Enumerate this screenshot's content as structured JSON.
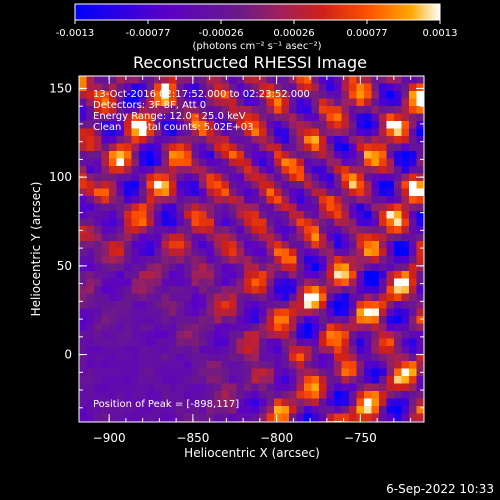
{
  "colorbar": {
    "ticks": [
      "-0.0013",
      "-0.00077",
      "-0.00026",
      "0.00026",
      "0.00077",
      "0.0013"
    ],
    "units": "(photons cm⁻² s⁻¹ asec⁻²)",
    "colors": [
      "#0000ff",
      "#5a00c8",
      "#6a1a88",
      "#9a2060",
      "#d02018",
      "#ff5000",
      "#ffa800",
      "#ffffff"
    ]
  },
  "chart_data": {
    "type": "heatmap",
    "title": "Reconstructed RHESSI Image",
    "xlabel": "Heliocentric X (arcsec)",
    "ylabel": "Heliocentric Y (arcsec)",
    "x_ticks": [
      "−900",
      "−850",
      "−800",
      "−750"
    ],
    "y_ticks": [
      "0",
      "50",
      "100",
      "150"
    ],
    "xlim": [
      -918,
      -712
    ],
    "ylim": [
      -38,
      157
    ],
    "value_range": [
      -0.0013,
      0.0013
    ],
    "annotations": [
      "13-Oct-2016 02:17:52.000 to 02:23:52.000",
      "Detectors: 3F 8F, Att 0",
      "Energy Range: 12.0 - 25.0 keV",
      "Clean     Total counts: 5.02E+03"
    ],
    "peak_label": "Position of Peak = [-898,117]",
    "peak_position": [
      -898,
      117
    ]
  },
  "footer": {
    "timestamp": "6-Sep-2022 10:33"
  }
}
